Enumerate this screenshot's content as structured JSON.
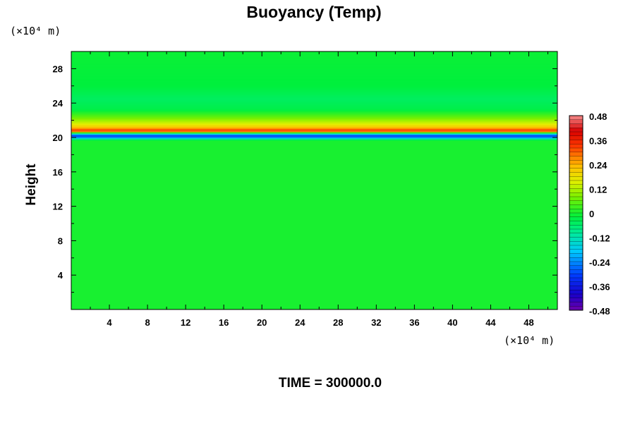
{
  "chart_data": {
    "type": "heatmap",
    "title": "Buoyancy (Temp)",
    "ylabel": "Height",
    "x_unit_label": "(×10⁴ m)",
    "y_unit_label": "(×10⁴ m)",
    "footer": "TIME = 300000.0",
    "xlim": [
      0,
      51
    ],
    "ylim": [
      0,
      30
    ],
    "x_ticks": [
      4,
      8,
      12,
      16,
      20,
      24,
      28,
      32,
      36,
      40,
      44,
      48
    ],
    "y_ticks": [
      4,
      8,
      12,
      16,
      20,
      24,
      28
    ],
    "colorbar": {
      "vmin": -0.48,
      "vmax": 0.48,
      "tick_values": [
        0.48,
        0.36,
        0.24,
        0.12,
        0,
        -0.12,
        -0.24,
        -0.36,
        -0.48
      ],
      "tick_labels": [
        "0.48",
        "0.36",
        "0.24",
        "0.12",
        "0",
        "-0.12",
        "-0.24",
        "-0.36",
        "-0.48"
      ]
    },
    "field_profile": [
      {
        "height": 0,
        "value": 0.0
      },
      {
        "height": 19.7,
        "value": 0.0
      },
      {
        "height": 20.0,
        "value": -0.2
      },
      {
        "height": 20.2,
        "value": -0.34
      },
      {
        "height": 20.5,
        "value": -0.1
      },
      {
        "height": 20.8,
        "value": 0.36
      },
      {
        "height": 21.2,
        "value": 0.22
      },
      {
        "height": 21.7,
        "value": 0.14
      },
      {
        "height": 22.4,
        "value": 0.06
      },
      {
        "height": 23.3,
        "value": -0.03
      },
      {
        "height": 24.5,
        "value": -0.05
      },
      {
        "height": 26.0,
        "value": -0.02
      },
      {
        "height": 30,
        "value": -0.01
      }
    ]
  }
}
